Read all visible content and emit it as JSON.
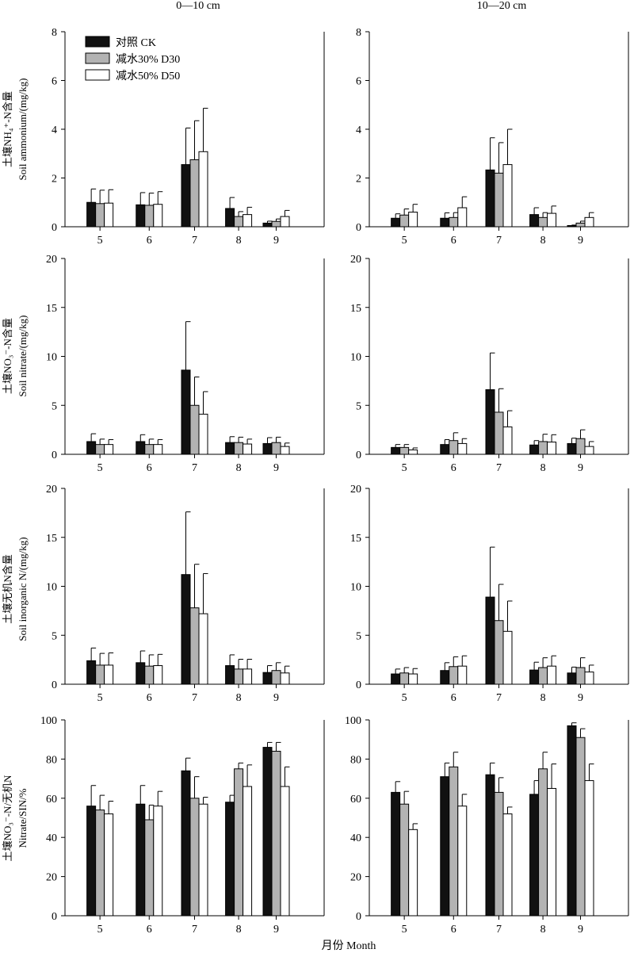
{
  "figure": {
    "column_titles": [
      "0—10 cm",
      "10—20 cm"
    ],
    "row_ylabels": [
      {
        "cn": "土壤NH₄⁺-N含量",
        "en": "Soil ammonium/(mg/kg)"
      },
      {
        "cn": "土壤NO₃⁻-N含量",
        "en": "Soil nitrate/(mg/kg)"
      },
      {
        "cn": "土壤无机N含量",
        "en": "Soil inorganic N/(mg/kg)"
      },
      {
        "cn": "土壤NO₃⁻-N/无机N",
        "en": "Nitrate/SIN/%"
      }
    ],
    "xlabel": "月份 Month",
    "legend": [
      "对照 CK",
      "减水30%  D30",
      "减水50%  D50"
    ]
  },
  "colors": {
    "CK": "#111111",
    "D30": "#b3b3b3",
    "D50": "#ffffff",
    "axis": "#000000"
  },
  "chart_data": [
    {
      "type": "bar",
      "row": 0,
      "col": 0,
      "categories": [
        "5",
        "6",
        "7",
        "8",
        "9"
      ],
      "ylim": [
        0,
        8
      ],
      "yticks": [
        0,
        2,
        4,
        6,
        8
      ],
      "legend": "top-left",
      "series": [
        {
          "name": "对照 CK",
          "values": [
            1.0,
            0.9,
            2.55,
            0.75,
            0.15
          ],
          "errors": [
            0.55,
            0.5,
            1.5,
            0.45,
            0.08
          ]
        },
        {
          "name": "减水30%  D30",
          "values": [
            0.95,
            0.88,
            2.75,
            0.42,
            0.22
          ],
          "errors": [
            0.55,
            0.5,
            1.6,
            0.2,
            0.1
          ]
        },
        {
          "name": "减水50%  D50",
          "values": [
            0.97,
            0.92,
            3.08,
            0.5,
            0.42
          ],
          "errors": [
            0.55,
            0.52,
            1.78,
            0.3,
            0.25
          ]
        }
      ]
    },
    {
      "type": "bar",
      "row": 0,
      "col": 1,
      "categories": [
        "5",
        "6",
        "7",
        "8",
        "9"
      ],
      "ylim": [
        0,
        8
      ],
      "yticks": [
        0,
        2,
        4,
        6,
        8
      ],
      "series": [
        {
          "name": "对照 CK",
          "values": [
            0.35,
            0.35,
            2.33,
            0.5,
            0.05
          ],
          "errors": [
            0.18,
            0.22,
            1.32,
            0.28,
            0.02
          ]
        },
        {
          "name": "减水30%  D30",
          "values": [
            0.48,
            0.38,
            2.2,
            0.38,
            0.15
          ],
          "errors": [
            0.25,
            0.2,
            1.25,
            0.2,
            0.08
          ]
        },
        {
          "name": "减水50%  D50",
          "values": [
            0.6,
            0.78,
            2.55,
            0.55,
            0.38
          ],
          "errors": [
            0.32,
            0.45,
            1.45,
            0.3,
            0.2
          ]
        }
      ]
    },
    {
      "type": "bar",
      "row": 1,
      "col": 0,
      "categories": [
        "5",
        "6",
        "7",
        "8",
        "9"
      ],
      "ylim": [
        0,
        20
      ],
      "yticks": [
        0,
        5,
        10,
        15,
        20
      ],
      "series": [
        {
          "name": "对照 CK",
          "values": [
            1.3,
            1.3,
            8.6,
            1.2,
            1.1
          ],
          "errors": [
            0.8,
            0.7,
            4.95,
            0.6,
            0.6
          ]
        },
        {
          "name": "减水30%  D30",
          "values": [
            1.0,
            1.0,
            5.0,
            1.2,
            1.2
          ],
          "errors": [
            0.55,
            0.55,
            2.9,
            0.55,
            0.55
          ]
        },
        {
          "name": "减水50%  D50",
          "values": [
            1.0,
            1.0,
            4.1,
            1.05,
            0.8
          ],
          "errors": [
            0.5,
            0.5,
            2.3,
            0.5,
            0.35
          ]
        }
      ]
    },
    {
      "type": "bar",
      "row": 1,
      "col": 1,
      "categories": [
        "5",
        "6",
        "7",
        "8",
        "9"
      ],
      "ylim": [
        0,
        20
      ],
      "yticks": [
        0,
        5,
        10,
        15,
        20
      ],
      "series": [
        {
          "name": "对照 CK",
          "values": [
            0.7,
            1.0,
            6.6,
            0.95,
            1.1
          ],
          "errors": [
            0.3,
            0.5,
            3.75,
            0.45,
            0.55
          ]
        },
        {
          "name": "减水30%  D30",
          "values": [
            0.7,
            1.4,
            4.3,
            1.3,
            1.6
          ],
          "errors": [
            0.3,
            0.8,
            2.4,
            0.75,
            0.9
          ]
        },
        {
          "name": "减水50%  D50",
          "values": [
            0.45,
            1.1,
            2.8,
            1.25,
            0.8
          ],
          "errors": [
            0.2,
            0.5,
            1.65,
            0.75,
            0.5
          ]
        }
      ]
    },
    {
      "type": "bar",
      "row": 2,
      "col": 0,
      "categories": [
        "5",
        "6",
        "7",
        "8",
        "9"
      ],
      "ylim": [
        0,
        20
      ],
      "yticks": [
        0,
        5,
        10,
        15,
        20
      ],
      "series": [
        {
          "name": "对照 CK",
          "values": [
            2.4,
            2.2,
            11.2,
            1.9,
            1.2
          ],
          "errors": [
            1.3,
            1.2,
            6.4,
            1.1,
            0.7
          ]
        },
        {
          "name": "减水30%  D30",
          "values": [
            1.95,
            1.85,
            7.8,
            1.55,
            1.4
          ],
          "errors": [
            1.2,
            1.15,
            4.45,
            1.0,
            0.8
          ]
        },
        {
          "name": "减水50%  D50",
          "values": [
            1.95,
            1.9,
            7.2,
            1.55,
            1.15
          ],
          "errors": [
            1.25,
            1.15,
            4.1,
            1.0,
            0.7
          ]
        }
      ]
    },
    {
      "type": "bar",
      "row": 2,
      "col": 1,
      "categories": [
        "5",
        "6",
        "7",
        "8",
        "9"
      ],
      "ylim": [
        0,
        20
      ],
      "yticks": [
        0,
        5,
        10,
        15,
        20
      ],
      "series": [
        {
          "name": "对照 CK",
          "values": [
            1.05,
            1.4,
            8.9,
            1.45,
            1.15
          ],
          "errors": [
            0.5,
            0.8,
            5.1,
            0.8,
            0.6
          ]
        },
        {
          "name": "减水30%  D30",
          "values": [
            1.15,
            1.8,
            6.5,
            1.7,
            1.7
          ],
          "errors": [
            0.55,
            1.0,
            3.7,
            1.0,
            1.0
          ]
        },
        {
          "name": "减水50%  D50",
          "values": [
            1.05,
            1.85,
            5.4,
            1.85,
            1.25
          ],
          "errors": [
            0.55,
            1.05,
            3.1,
            1.05,
            0.7
          ]
        }
      ]
    },
    {
      "type": "bar",
      "row": 3,
      "col": 0,
      "categories": [
        "5",
        "6",
        "7",
        "8",
        "9"
      ],
      "ylim": [
        0,
        100
      ],
      "yticks": [
        0,
        20,
        40,
        60,
        80,
        100
      ],
      "series": [
        {
          "name": "对照 CK",
          "values": [
            56,
            57,
            74,
            58,
            86
          ],
          "errors": [
            10.5,
            9.5,
            6.5,
            3.5,
            2.5
          ]
        },
        {
          "name": "减水30%  D30",
          "values": [
            54,
            49,
            60,
            75,
            84
          ],
          "errors": [
            7.5,
            7.5,
            11,
            3,
            4.5
          ]
        },
        {
          "name": "减水50%  D50",
          "values": [
            52,
            56,
            57,
            66,
            66
          ],
          "errors": [
            6.5,
            7.5,
            3.5,
            11,
            10
          ]
        }
      ]
    },
    {
      "type": "bar",
      "row": 3,
      "col": 1,
      "categories": [
        "5",
        "6",
        "7",
        "8",
        "9"
      ],
      "ylim": [
        0,
        100
      ],
      "yticks": [
        0,
        20,
        40,
        60,
        80,
        100
      ],
      "series": [
        {
          "name": "对照 CK",
          "values": [
            63,
            71,
            72,
            62,
            97
          ],
          "errors": [
            5.5,
            7,
            6,
            7,
            1.5
          ]
        },
        {
          "name": "减水30%  D30",
          "values": [
            57,
            76,
            63,
            75,
            91
          ],
          "errors": [
            6.5,
            7.5,
            7.5,
            8.5,
            4.5
          ]
        },
        {
          "name": "减水50%  D50",
          "values": [
            44,
            56,
            52,
            65,
            69
          ],
          "errors": [
            3,
            6,
            3.5,
            12.5,
            8.5
          ]
        }
      ]
    }
  ]
}
